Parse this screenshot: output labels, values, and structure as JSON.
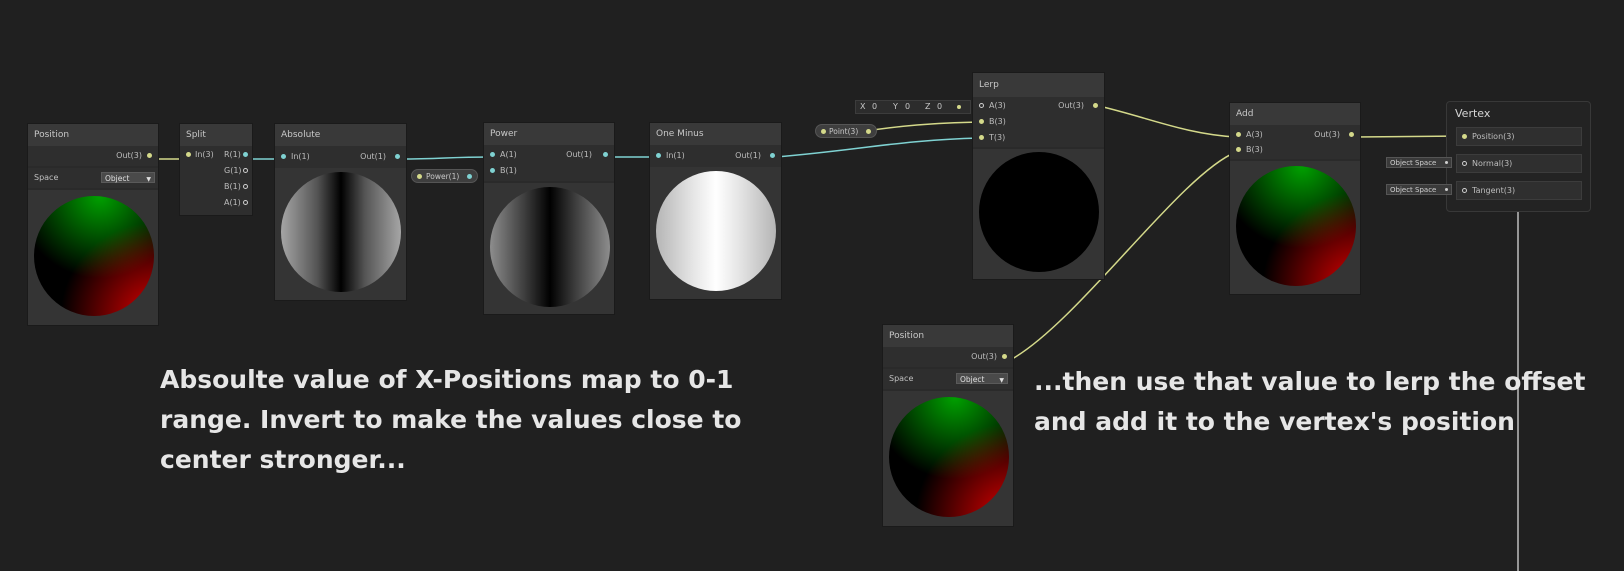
{
  "colors": {
    "background": "#202020",
    "wire_vec3": "#d4d98a",
    "wire_vec1": "#7fd2d2"
  },
  "nodes": {
    "position1": {
      "title": "Position",
      "out": "Out(3)",
      "space_label": "Space",
      "space_value": "Object"
    },
    "split": {
      "title": "Split",
      "in": "In(3)",
      "outs": [
        "R(1)",
        "G(1)",
        "B(1)",
        "A(1)"
      ]
    },
    "absolute": {
      "title": "Absolute",
      "in": "In(1)",
      "out": "Out(1)"
    },
    "power": {
      "title": "Power",
      "in_a": "A(1)",
      "in_b": "B(1)",
      "out": "Out(1)",
      "b_input": "Power(1)"
    },
    "one_minus": {
      "title": "One Minus",
      "in": "In(1)",
      "out": "Out(1)"
    },
    "lerp": {
      "title": "Lerp",
      "in_a": "A(3)",
      "in_b": "B(3)",
      "in_t": "T(3)",
      "out": "Out(3)",
      "a_x_label": "X",
      "a_x": "0",
      "a_y_label": "Y",
      "a_y": "0",
      "a_z_label": "Z",
      "a_z": "0",
      "t_input": "Point(3)"
    },
    "add": {
      "title": "Add",
      "in_a": "A(3)",
      "in_b": "B(3)",
      "out": "Out(3)"
    },
    "vertex": {
      "title": "Vertex",
      "ports": [
        "Position(3)",
        "Normal(3)",
        "Tangent(3)"
      ],
      "normal_space": "Object Space",
      "tangent_space": "Object Space"
    },
    "position2": {
      "title": "Position",
      "out": "Out(3)",
      "space_label": "Space",
      "space_value": "Object"
    }
  },
  "notes": {
    "left": [
      "Absoulte value of X-Positions map to 0-1",
      "range. Invert to make the values close to",
      "center stronger..."
    ],
    "right": [
      "...then use that value to lerp the offset",
      "and add it to the vertex's position"
    ]
  },
  "icons": {
    "dropdown_arrow": "▼",
    "port_dot": "dot",
    "port_ring": "ring"
  }
}
